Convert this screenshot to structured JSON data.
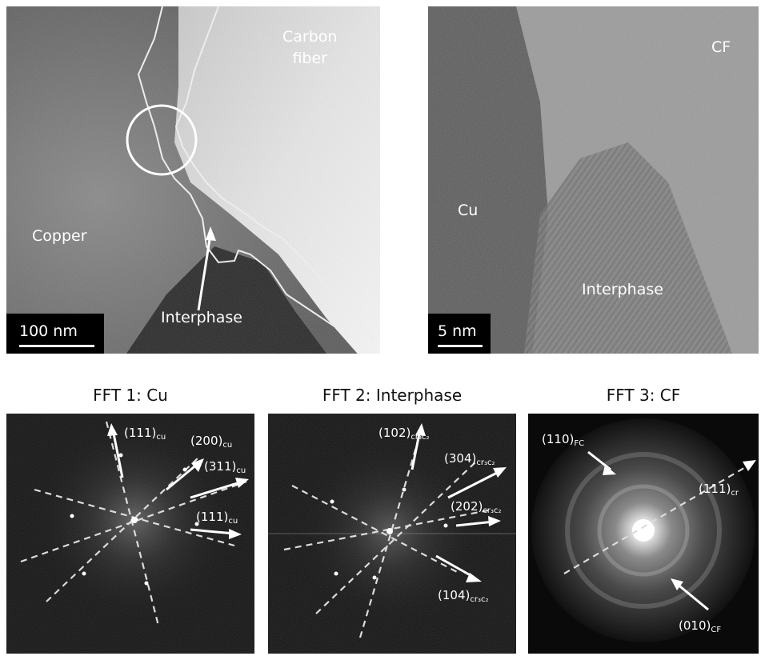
{
  "panel_a": {
    "labels": {
      "copper": "Copper",
      "carbon_fiber": "Carbon\nfiber",
      "interphase": "Interphase"
    },
    "scale": "100 nm"
  },
  "panel_b": {
    "labels": {
      "cf": "CF",
      "cu": "Cu",
      "interphase": "Interphase"
    },
    "scale": "5 nm"
  },
  "fft": [
    {
      "title": "FFT 1: Cu",
      "indices": [
        {
          "label": "(111)",
          "sub": "cu"
        },
        {
          "label": "(200)",
          "sub": "cu"
        },
        {
          "label": "(311)",
          "sub": "cu"
        },
        {
          "label": "(111)",
          "sub": "cu"
        }
      ]
    },
    {
      "title": "FFT 2: Interphase",
      "indices": [
        {
          "label": "(102)",
          "sub": "cr₃c₂"
        },
        {
          "label": "(304)",
          "sub": "cr₃c₂"
        },
        {
          "label": "(202)",
          "sub": "cr₃c₂"
        },
        {
          "label": "(104)",
          "sub": "cr₃c₂"
        }
      ]
    },
    {
      "title": "FFT 3: CF",
      "indices": [
        {
          "label": "(110)",
          "sub": "FC"
        },
        {
          "label": "(111)",
          "sub": "cr"
        },
        {
          "label": "(010)",
          "sub": "CF"
        }
      ]
    }
  ]
}
